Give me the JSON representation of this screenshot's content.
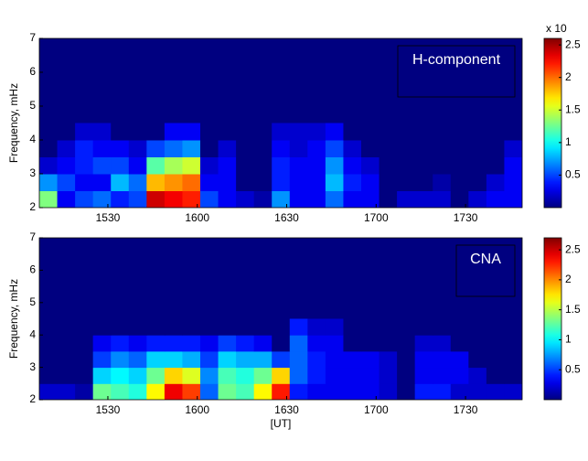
{
  "chart_data": [
    {
      "type": "heatmap",
      "y_label": "Frequency, mHz",
      "annotation": "H-component",
      "colorbar_label": "x 10",
      "x": [
        910,
        916,
        922,
        928,
        934,
        940,
        946,
        952,
        958,
        964,
        970,
        976,
        982,
        988,
        994,
        1000,
        1006,
        1012,
        1018,
        1024,
        1030,
        1036,
        1042,
        1048,
        1054,
        1060,
        1066
      ],
      "y": [
        2.25,
        2.75,
        3.25,
        3.75,
        4.25
      ],
      "values": [
        [
          1.3,
          0.3,
          0.5,
          0.6,
          0.4,
          0.5,
          2.4,
          2.3,
          2.2,
          0.5,
          0.3,
          0.2,
          0.1,
          0.7,
          0.3,
          0.3,
          0.6,
          0.3,
          0.3,
          0,
          0.2,
          0.2,
          0.2,
          0,
          0.2,
          0.3,
          0.3
        ],
        [
          0.7,
          0.5,
          0.3,
          0.3,
          0.8,
          0.6,
          1.8,
          1.9,
          2.0,
          0.3,
          0.3,
          0,
          0,
          0.4,
          0.3,
          0.3,
          0.8,
          0.4,
          0.3,
          0,
          0,
          0,
          0.1,
          0,
          0,
          0.2,
          0.3
        ],
        [
          0.2,
          0.3,
          0.4,
          0.5,
          0.5,
          0.3,
          1.2,
          1.4,
          1.5,
          0.2,
          0.3,
          0,
          0,
          0.4,
          0.3,
          0.3,
          0.7,
          0.3,
          0.2,
          0,
          0,
          0,
          0,
          0,
          0,
          0,
          0.3
        ],
        [
          0,
          0.2,
          0.4,
          0.3,
          0.3,
          0.2,
          0.5,
          0.6,
          0.7,
          0,
          0.2,
          0,
          0,
          0.3,
          0.2,
          0.3,
          0.5,
          0.2,
          0,
          0,
          0,
          0,
          0,
          0,
          0,
          0,
          0.2
        ],
        [
          0,
          0,
          0.2,
          0.2,
          0,
          0,
          0,
          0.3,
          0.3,
          0,
          0,
          0,
          0,
          0.2,
          0.2,
          0.2,
          0.3,
          0,
          0,
          0,
          0,
          0,
          0,
          0,
          0,
          0,
          0
        ]
      ],
      "xlim": [
        907,
        1069
      ],
      "ylim": [
        2,
        7
      ],
      "clim": [
        0,
        2.6
      ],
      "xticks": [
        {
          "value": 930,
          "label": "1530"
        },
        {
          "value": 960,
          "label": "1600"
        },
        {
          "value": 990,
          "label": "1630"
        },
        {
          "value": 1020,
          "label": "1700"
        },
        {
          "value": 1050,
          "label": "1730"
        }
      ],
      "yticks": [
        2,
        3,
        4,
        5,
        6,
        7
      ],
      "cticks": [
        0.5,
        1,
        1.5,
        2,
        2.5
      ]
    },
    {
      "type": "heatmap",
      "y_label": "Frequency, mHz",
      "x_label": "[UT]",
      "annotation": "CNA",
      "x": [
        910,
        916,
        922,
        928,
        934,
        940,
        946,
        952,
        958,
        964,
        970,
        976,
        982,
        988,
        994,
        1000,
        1006,
        1012,
        1018,
        1024,
        1030,
        1036,
        1042,
        1048,
        1054,
        1060,
        1066
      ],
      "y": [
        2.25,
        2.75,
        3.25,
        3.75,
        4.25
      ],
      "values": [
        [
          0.2,
          0.2,
          0.1,
          1.3,
          1.2,
          1.1,
          1.7,
          2.4,
          2.2,
          0.6,
          1.3,
          1.2,
          1.7,
          2.3,
          0.4,
          0.3,
          0.3,
          0.3,
          0.3,
          0.2,
          0,
          0.4,
          0.4,
          0.2,
          0.2,
          0.2,
          0.2
        ],
        [
          0,
          0,
          0,
          0.9,
          1.0,
          0.9,
          1.3,
          1.8,
          1.6,
          0.7,
          1.2,
          1.1,
          1.3,
          1.8,
          0.6,
          0.4,
          0.3,
          0.3,
          0.3,
          0.2,
          0,
          0.3,
          0.3,
          0.3,
          0.2,
          0,
          0
        ],
        [
          0,
          0,
          0,
          0.5,
          0.7,
          0.6,
          0.9,
          0.9,
          0.8,
          0.5,
          0.9,
          0.8,
          0.8,
          0.5,
          0.6,
          0.4,
          0.3,
          0.3,
          0.3,
          0.2,
          0,
          0.3,
          0.3,
          0.3,
          0,
          0,
          0
        ],
        [
          0,
          0,
          0,
          0.3,
          0.4,
          0.3,
          0.4,
          0.4,
          0.4,
          0.3,
          0.5,
          0.4,
          0.3,
          0,
          0.6,
          0.3,
          0.3,
          0,
          0,
          0,
          0,
          0.2,
          0.2,
          0,
          0,
          0,
          0
        ],
        [
          0,
          0,
          0,
          0,
          0,
          0,
          0,
          0,
          0,
          0,
          0,
          0,
          0,
          0,
          0.4,
          0.2,
          0.2,
          0,
          0,
          0,
          0,
          0,
          0,
          0,
          0,
          0,
          0
        ]
      ],
      "xlim": [
        907,
        1069
      ],
      "ylim": [
        2,
        7
      ],
      "clim": [
        0,
        2.7
      ],
      "xticks": [
        {
          "value": 930,
          "label": "1530"
        },
        {
          "value": 960,
          "label": "1600"
        },
        {
          "value": 990,
          "label": "1630"
        },
        {
          "value": 1020,
          "label": "1700"
        },
        {
          "value": 1050,
          "label": "1730"
        }
      ],
      "yticks": [
        2,
        3,
        4,
        5,
        6,
        7
      ],
      "cticks": [
        0.5,
        1,
        1.5,
        2,
        2.5
      ]
    }
  ]
}
